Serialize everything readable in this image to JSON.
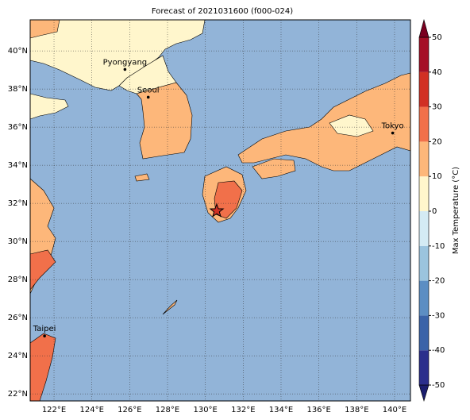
{
  "map": {
    "title": "Forecast of 2021031600 (f000-024)",
    "xlim": [
      120.74,
      140.84
    ],
    "ylim": [
      21.63,
      41.63
    ],
    "ocean_color": "#92b4d8",
    "lon_ticks": [
      {
        "value": 122,
        "label": "122°E"
      },
      {
        "value": 124,
        "label": "124°E"
      },
      {
        "value": 126,
        "label": "126°E"
      },
      {
        "value": 128,
        "label": "128°E"
      },
      {
        "value": 130,
        "label": "130°E"
      },
      {
        "value": 132,
        "label": "132°E"
      },
      {
        "value": 134,
        "label": "134°E"
      },
      {
        "value": 136,
        "label": "136°E"
      },
      {
        "value": 138,
        "label": "138°E"
      },
      {
        "value": 140,
        "label": "140°E"
      }
    ],
    "lat_ticks": [
      {
        "value": 22,
        "label": "22°N"
      },
      {
        "value": 24,
        "label": "24°N"
      },
      {
        "value": 26,
        "label": "26°N"
      },
      {
        "value": 28,
        "label": "28°N"
      },
      {
        "value": 30,
        "label": "30°N"
      },
      {
        "value": 32,
        "label": "32°N"
      },
      {
        "value": 34,
        "label": "34°N"
      },
      {
        "value": 36,
        "label": "36°N"
      },
      {
        "value": 38,
        "label": "38°N"
      },
      {
        "value": 40,
        "label": "40°N"
      }
    ],
    "cities": [
      {
        "name": "Pyongyang",
        "lon": 125.75,
        "lat": 39.03
      },
      {
        "name": "Seoul",
        "lon": 126.98,
        "lat": 37.57
      },
      {
        "name": "Tokyo",
        "lon": 139.9,
        "lat": 35.69
      },
      {
        "name": "Taipei",
        "lon": 121.5,
        "lat": 25.04
      }
    ],
    "marker": {
      "lon": 130.6,
      "lat": 31.6
    },
    "colorbar": {
      "label": "Max Temperature (°C)",
      "ticks": [
        -50,
        -40,
        -30,
        -20,
        -10,
        0,
        10,
        20,
        30,
        40,
        50
      ],
      "colors": [
        "#2b2f8c",
        "#3a63a8",
        "#5c8ec3",
        "#9bc4de",
        "#d4ebf4",
        "#fff6cc",
        "#fdb77a",
        "#f1704a",
        "#d13024",
        "#a50f26"
      ],
      "under": "#1b1e6e",
      "over": "#7a0020"
    }
  }
}
